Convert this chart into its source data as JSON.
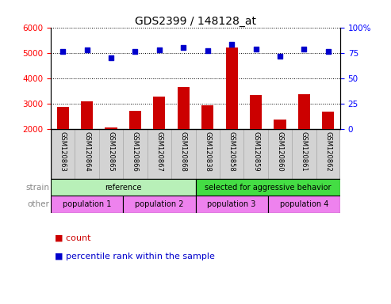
{
  "title": "GDS2399 / 148128_at",
  "samples": [
    "GSM120863",
    "GSM120864",
    "GSM120865",
    "GSM120866",
    "GSM120867",
    "GSM120868",
    "GSM120838",
    "GSM120858",
    "GSM120859",
    "GSM120860",
    "GSM120861",
    "GSM120862"
  ],
  "counts": [
    2880,
    3080,
    2070,
    2730,
    3290,
    3660,
    2940,
    5220,
    3340,
    2380,
    3360,
    2680
  ],
  "percentile": [
    76,
    78,
    70,
    76,
    78,
    80,
    77,
    83,
    79,
    72,
    79,
    76
  ],
  "ylim_left": [
    2000,
    6000
  ],
  "ylim_right": [
    0,
    100
  ],
  "yticks_left": [
    2000,
    3000,
    4000,
    5000,
    6000
  ],
  "yticks_right": [
    0,
    25,
    50,
    75,
    100
  ],
  "bar_color": "#cc0000",
  "dot_color": "#0000cc",
  "bar_bottom": 2000,
  "strain_groups": [
    {
      "label": "reference",
      "start": 0,
      "end": 6,
      "color": "#b8f0b8"
    },
    {
      "label": "selected for aggressive behavior",
      "start": 6,
      "end": 12,
      "color": "#44dd44"
    }
  ],
  "other_groups": [
    {
      "label": "population 1",
      "start": 0,
      "end": 3,
      "color": "#ee82ee"
    },
    {
      "label": "population 2",
      "start": 3,
      "end": 6,
      "color": "#ee82ee"
    },
    {
      "label": "population 3",
      "start": 6,
      "end": 9,
      "color": "#ee82ee"
    },
    {
      "label": "population 4",
      "start": 9,
      "end": 12,
      "color": "#ee82ee"
    }
  ],
  "strain_label": "strain",
  "other_label": "other",
  "legend_count_label": "count",
  "legend_pct_label": "percentile rank within the sample",
  "bg_color": "#ffffff",
  "tick_area_color": "#d3d3d3",
  "label_color": "#888888"
}
